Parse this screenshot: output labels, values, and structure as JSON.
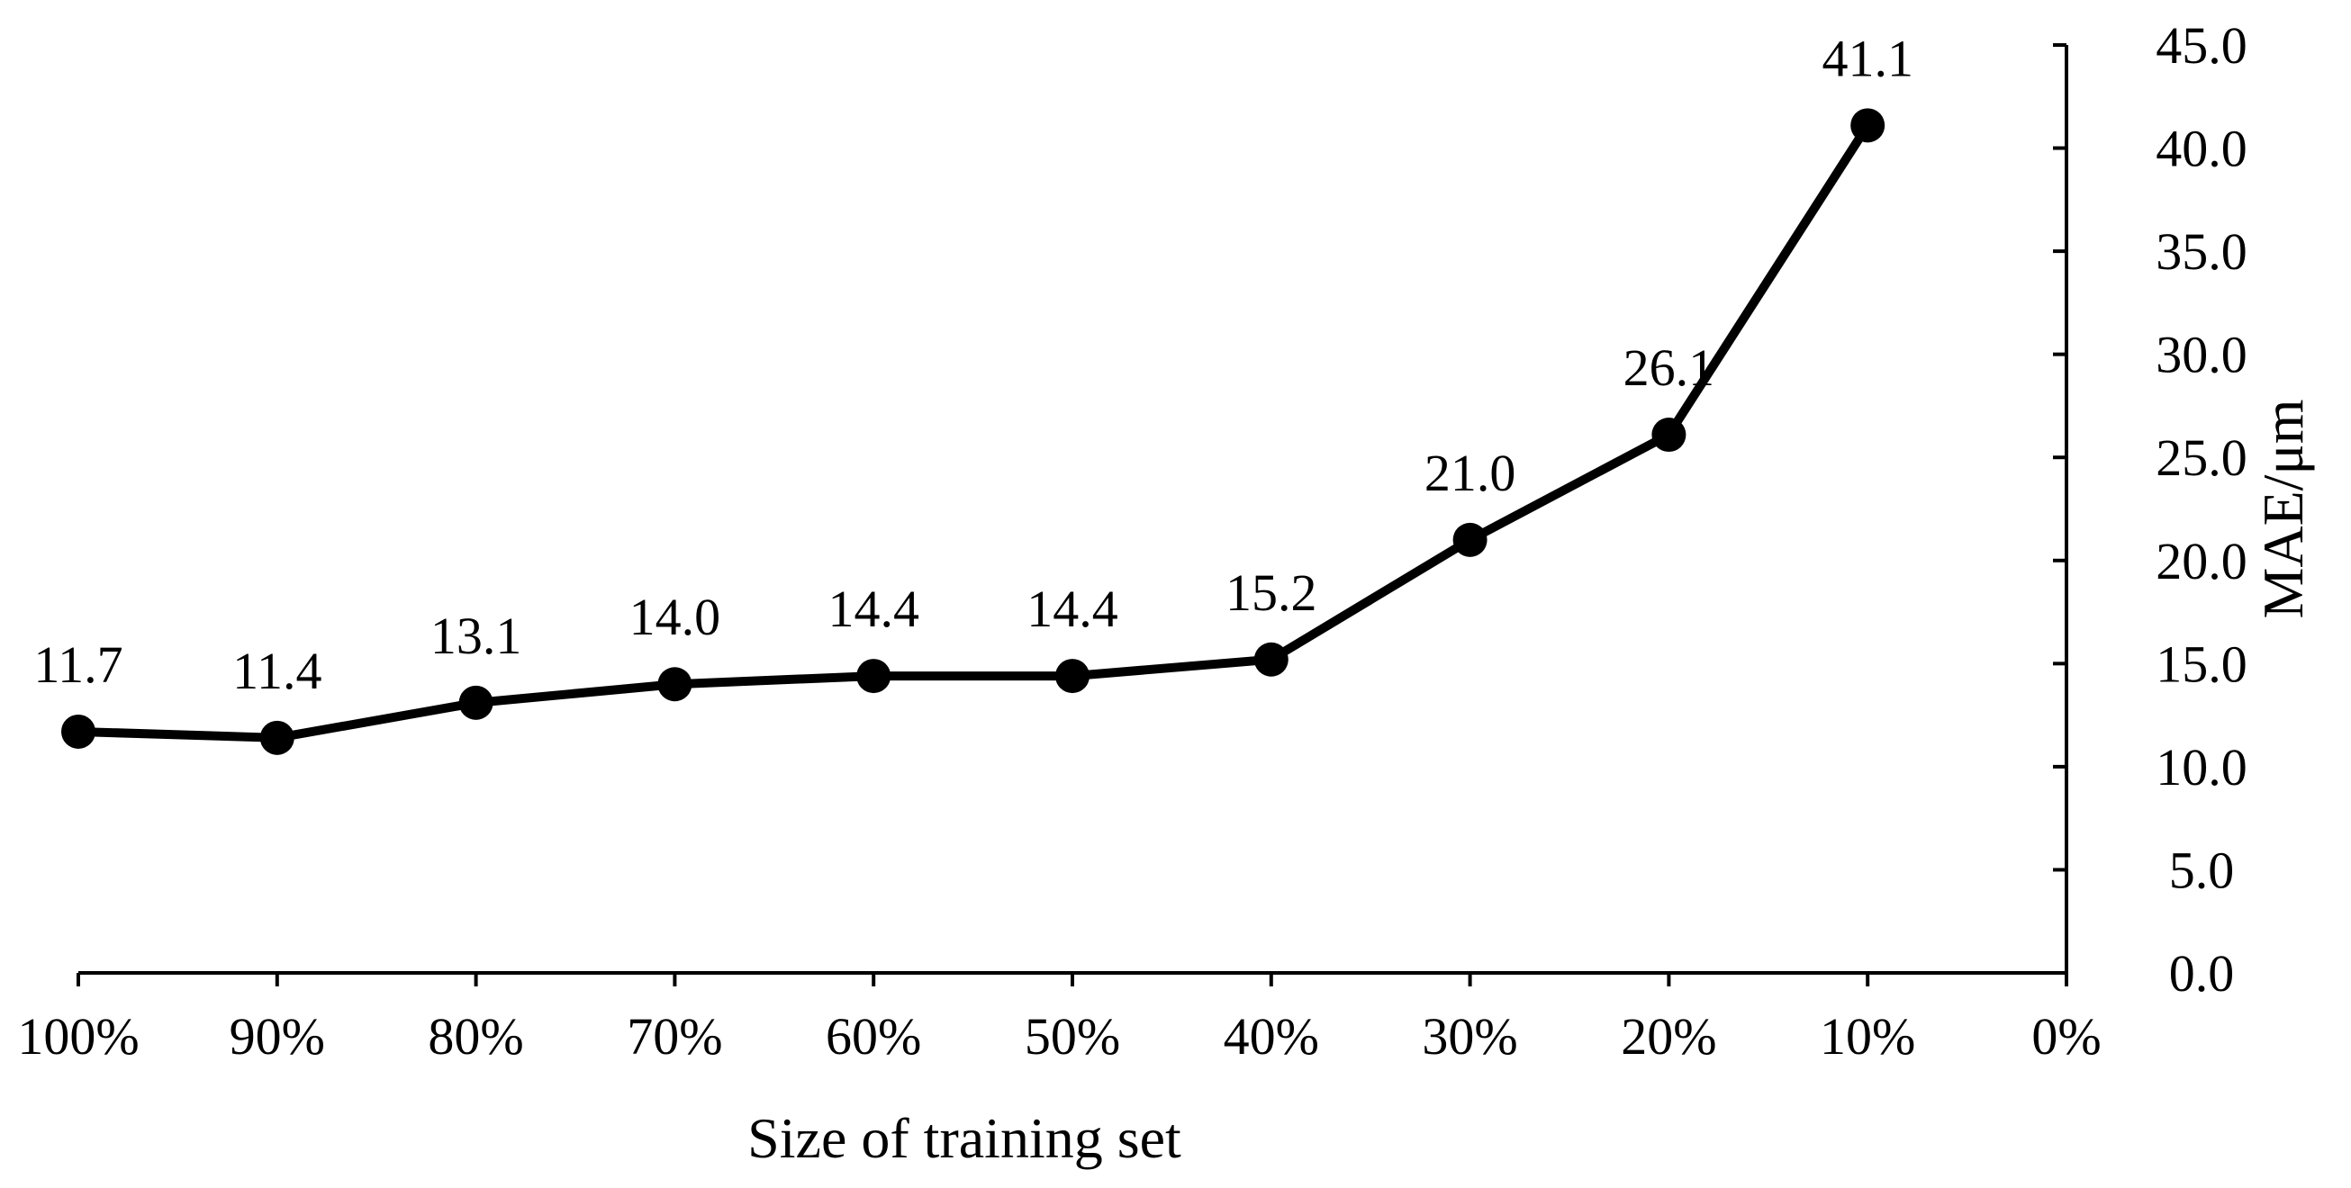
{
  "chart_data": {
    "type": "line",
    "title": "",
    "xlabel": "Size of training set",
    "ylabel": "MAE/μm",
    "categories": [
      "100%",
      "90%",
      "80%",
      "70%",
      "60%",
      "50%",
      "40%",
      "30%",
      "20%",
      "10%",
      "0%"
    ],
    "series": [
      {
        "name": "",
        "values": [
          11.7,
          11.4,
          13.1,
          14.0,
          14.4,
          14.4,
          15.2,
          21.0,
          26.1,
          41.1,
          null
        ],
        "labels": [
          "11.7",
          "11.4",
          "13.1",
          "14.0",
          "14.4",
          "14.4",
          "15.2",
          "21.0",
          "26.1",
          "41.1",
          null
        ]
      }
    ],
    "ylim": [
      0,
      45
    ],
    "yticks": [
      "0.0",
      "5.0",
      "10.0",
      "15.0",
      "20.0",
      "25.0",
      "30.0",
      "35.0",
      "40.0",
      "45.0"
    ],
    "y_axis_position": "right",
    "grid": false,
    "legend": "none",
    "colors": {
      "line": "#000000",
      "marker": "#000000"
    }
  }
}
